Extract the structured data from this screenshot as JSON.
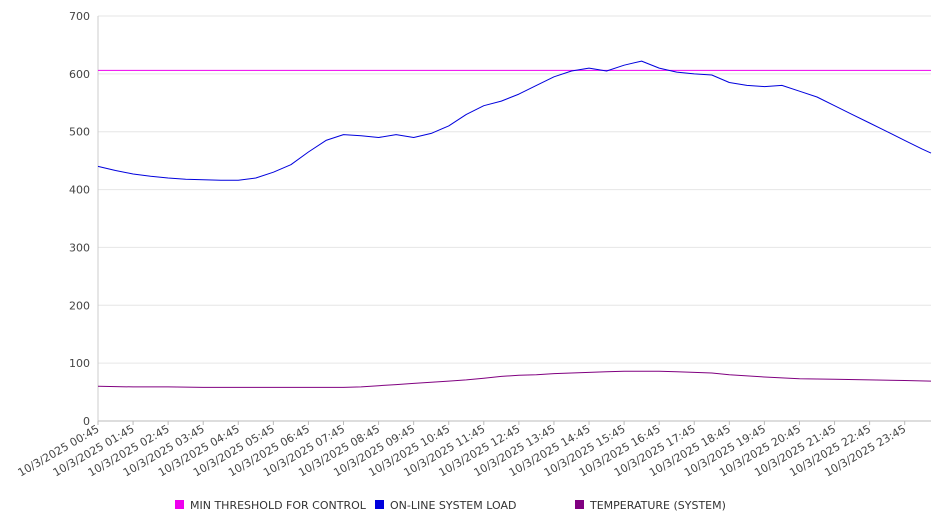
{
  "chart_data": {
    "type": "line",
    "title": "",
    "xlabel": "",
    "ylabel": "",
    "ylim": [
      0,
      700
    ],
    "yticks": [
      0,
      100,
      200,
      300,
      400,
      500,
      600,
      700
    ],
    "grid": true,
    "legend_position": "bottom",
    "x_tick_labels": [
      "10/3/2025 00:45",
      "10/3/2025 01:45",
      "10/3/2025 02:45",
      "10/3/2025 03:45",
      "10/3/2025 04:45",
      "10/3/2025 05:45",
      "10/3/2025 06:45",
      "10/3/2025 07:45",
      "10/3/2025 08:45",
      "10/3/2025 09:45",
      "10/3/2025 10:45",
      "10/3/2025 11:45",
      "10/3/2025 12:45",
      "10/3/2025 13:45",
      "10/3/2025 14:45",
      "10/3/2025 15:45",
      "10/3/2025 16:45",
      "10/3/2025 17:45",
      "10/3/2025 18:45",
      "10/3/2025 19:45",
      "10/3/2025 20:45",
      "10/3/2025 21:45",
      "10/3/2025 22:45",
      "10/3/2025 23:45"
    ],
    "series": [
      {
        "name": "MIN THRESHOLD FOR CONTROL",
        "color": "#ee00ee",
        "x": [
          0,
          23.75
        ],
        "y": [
          606,
          606
        ]
      },
      {
        "name": "ON-LINE SYSTEM LOAD",
        "color": "#0000dd",
        "x": [
          0,
          0.5,
          1,
          1.5,
          2,
          2.5,
          3,
          3.5,
          4,
          4.5,
          5,
          5.5,
          6,
          6.5,
          7,
          7.5,
          8,
          8.5,
          9,
          9.5,
          10,
          10.5,
          11,
          11.5,
          12,
          12.5,
          13,
          13.5,
          14,
          14.5,
          15,
          15.5,
          16,
          16.5,
          17,
          17.5,
          18,
          18.5,
          19,
          19.5,
          20,
          20.5,
          21,
          21.5,
          22,
          22.5,
          23,
          23.5,
          23.75
        ],
        "y": [
          440,
          433,
          427,
          423,
          420,
          418,
          417,
          416,
          416,
          420,
          430,
          443,
          465,
          485,
          495,
          493,
          490,
          495,
          490,
          497,
          510,
          530,
          545,
          553,
          565,
          580,
          595,
          605,
          610,
          605,
          615,
          622,
          610,
          603,
          600,
          598,
          585,
          580,
          578,
          580,
          570,
          560,
          545,
          530,
          515,
          500,
          485,
          470,
          463
        ]
      },
      {
        "name": "TEMPERATURE (SYSTEM)",
        "color": "#800080",
        "x": [
          0,
          1,
          2,
          3,
          4,
          5,
          6,
          7,
          7.5,
          8,
          8.5,
          9,
          9.5,
          10,
          10.5,
          11,
          11.5,
          12,
          12.5,
          13,
          13.5,
          14,
          14.5,
          15,
          15.5,
          16,
          16.5,
          17,
          17.5,
          18,
          19,
          20,
          21,
          22,
          23,
          23.75
        ],
        "y": [
          60,
          59,
          59,
          58,
          58,
          58,
          58,
          58,
          59,
          61,
          63,
          65,
          67,
          69,
          71,
          74,
          77,
          79,
          80,
          82,
          83,
          84,
          85,
          86,
          86,
          86,
          85,
          84,
          83,
          80,
          76,
          73,
          72,
          71,
          70,
          69
        ]
      }
    ]
  }
}
